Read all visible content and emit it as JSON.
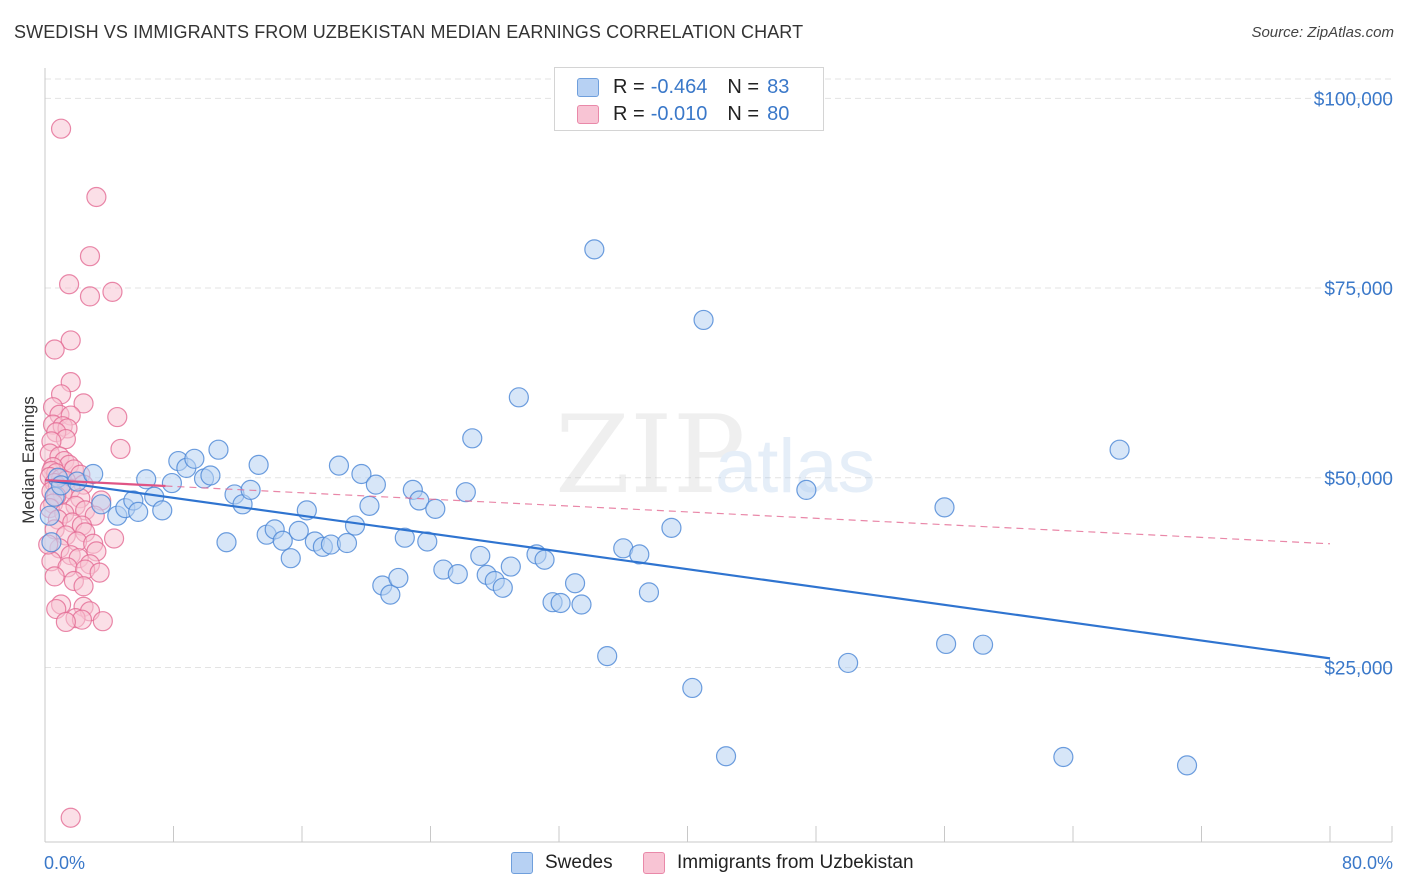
{
  "title": "SWEDISH VS IMMIGRANTS FROM UZBEKISTAN MEDIAN EARNINGS CORRELATION CHART",
  "source": "Source: ZipAtlas.com",
  "watermark": {
    "zip": "ZIP",
    "atlas": "atlas"
  },
  "legend": {
    "r_label": "R =",
    "n_label": "N =",
    "rows": [
      {
        "name": "Swedes",
        "r": "-0.464",
        "n": "83",
        "fill": "#b7d1f3",
        "stroke": "#6f9fdc"
      },
      {
        "name": "Immigrants from Uzbekistan",
        "r": "-0.010",
        "n": "80",
        "fill": "#f8c4d4",
        "stroke": "#e989a9"
      }
    ]
  },
  "chart_data": {
    "type": "scatter",
    "title": "SWEDISH VS IMMIGRANTS FROM UZBEKISTAN MEDIAN EARNINGS CORRELATION CHART",
    "xlabel": "",
    "ylabel": "Median Earnings",
    "xlim": [
      0,
      80
    ],
    "ylim": [
      2000,
      104000
    ],
    "x_unit": "%",
    "x_tick_labels": [
      "0.0%",
      "80.0%"
    ],
    "x_minor_ticks": [
      0,
      8,
      16,
      24,
      32,
      40,
      48,
      56,
      64,
      72,
      80
    ],
    "y_ticks": [
      25000,
      50000,
      75000,
      100000
    ],
    "y_tick_labels": [
      "$25,000",
      "$50,000",
      "$75,000",
      "$100,000"
    ],
    "grid": true,
    "legend_position": "top-center",
    "series": [
      {
        "name": "Swedes",
        "color": "#4a86d6",
        "fill": "#b7d1f3",
        "trend": {
          "x": [
            0,
            80
          ],
          "y": [
            49700,
            26200
          ],
          "style": "solid"
        },
        "points": [
          [
            0.3,
            45000
          ],
          [
            0.4,
            41500
          ],
          [
            0.6,
            47500
          ],
          [
            0.8,
            50000
          ],
          [
            1.0,
            49000
          ],
          [
            2.0,
            49500
          ],
          [
            3.0,
            50500
          ],
          [
            3.5,
            46500
          ],
          [
            4.5,
            45000
          ],
          [
            5.0,
            46000
          ],
          [
            5.5,
            47000
          ],
          [
            5.8,
            45500
          ],
          [
            6.3,
            49800
          ],
          [
            6.8,
            47500
          ],
          [
            7.3,
            45700
          ],
          [
            7.9,
            49300
          ],
          [
            8.3,
            52200
          ],
          [
            8.8,
            51300
          ],
          [
            9.3,
            52500
          ],
          [
            9.9,
            49900
          ],
          [
            10.3,
            50300
          ],
          [
            10.8,
            53700
          ],
          [
            11.3,
            41500
          ],
          [
            11.8,
            47800
          ],
          [
            12.3,
            46500
          ],
          [
            12.8,
            48400
          ],
          [
            13.3,
            51700
          ],
          [
            13.8,
            42500
          ],
          [
            14.3,
            43200
          ],
          [
            14.8,
            41700
          ],
          [
            15.3,
            39400
          ],
          [
            15.8,
            43000
          ],
          [
            16.3,
            45700
          ],
          [
            16.8,
            41600
          ],
          [
            17.3,
            40900
          ],
          [
            17.8,
            41200
          ],
          [
            18.3,
            51600
          ],
          [
            18.8,
            41400
          ],
          [
            19.3,
            43700
          ],
          [
            19.7,
            50500
          ],
          [
            20.2,
            46300
          ],
          [
            20.6,
            49100
          ],
          [
            21.0,
            35800
          ],
          [
            21.5,
            34600
          ],
          [
            22.0,
            36800
          ],
          [
            22.4,
            42100
          ],
          [
            22.9,
            48400
          ],
          [
            23.3,
            47000
          ],
          [
            23.8,
            41600
          ],
          [
            24.3,
            45900
          ],
          [
            24.8,
            37900
          ],
          [
            25.7,
            37300
          ],
          [
            26.2,
            48100
          ],
          [
            26.6,
            55200
          ],
          [
            27.1,
            39700
          ],
          [
            27.5,
            37200
          ],
          [
            28.0,
            36400
          ],
          [
            28.5,
            35500
          ],
          [
            29.0,
            38300
          ],
          [
            29.5,
            60600
          ],
          [
            30.6,
            39900
          ],
          [
            31.1,
            39200
          ],
          [
            31.6,
            33600
          ],
          [
            32.1,
            33500
          ],
          [
            33.0,
            36100
          ],
          [
            33.4,
            33300
          ],
          [
            34.2,
            80100
          ],
          [
            35.0,
            26500
          ],
          [
            36.0,
            40700
          ],
          [
            37.0,
            39900
          ],
          [
            37.6,
            34900
          ],
          [
            39.0,
            43400
          ],
          [
            40.3,
            22300
          ],
          [
            41.0,
            70800
          ],
          [
            42.4,
            13300
          ],
          [
            47.4,
            48400
          ],
          [
            50.0,
            25600
          ],
          [
            56.0,
            46100
          ],
          [
            56.1,
            28100
          ],
          [
            58.4,
            28000
          ],
          [
            63.4,
            13200
          ],
          [
            66.9,
            53700
          ],
          [
            71.1,
            12100
          ]
        ]
      },
      {
        "name": "Immigrants from Uzbekistan",
        "color": "#e46a93",
        "fill": "#f8c4d4",
        "trend": {
          "x": [
            0,
            80
          ],
          "y": [
            49700,
            41300
          ],
          "style": "dashed",
          "solid_until_x": 7.5
        },
        "points": [
          [
            1.0,
            96000
          ],
          [
            3.2,
            87000
          ],
          [
            2.8,
            79200
          ],
          [
            1.5,
            75500
          ],
          [
            4.2,
            74500
          ],
          [
            2.8,
            73900
          ],
          [
            1.6,
            68100
          ],
          [
            0.6,
            66900
          ],
          [
            1.6,
            62600
          ],
          [
            1.0,
            61000
          ],
          [
            2.4,
            59800
          ],
          [
            0.5,
            59300
          ],
          [
            0.9,
            58300
          ],
          [
            1.6,
            58200
          ],
          [
            4.5,
            58000
          ],
          [
            0.5,
            57000
          ],
          [
            1.1,
            56800
          ],
          [
            1.4,
            56500
          ],
          [
            0.7,
            56000
          ],
          [
            1.3,
            55100
          ],
          [
            0.4,
            54800
          ],
          [
            4.7,
            53800
          ],
          [
            0.3,
            53200
          ],
          [
            0.9,
            52800
          ],
          [
            1.2,
            52200
          ],
          [
            1.5,
            51700
          ],
          [
            0.5,
            51400
          ],
          [
            1.8,
            51100
          ],
          [
            0.4,
            50900
          ],
          [
            0.7,
            50600
          ],
          [
            2.2,
            50400
          ],
          [
            0.3,
            50100
          ],
          [
            1.0,
            49900
          ],
          [
            1.3,
            49600
          ],
          [
            0.6,
            49300
          ],
          [
            2.4,
            49100
          ],
          [
            0.8,
            48800
          ],
          [
            1.6,
            48500
          ],
          [
            0.4,
            48200
          ],
          [
            1.1,
            47900
          ],
          [
            0.7,
            47600
          ],
          [
            2.2,
            47300
          ],
          [
            3.5,
            47000
          ],
          [
            0.5,
            46600
          ],
          [
            1.9,
            46300
          ],
          [
            0.3,
            46000
          ],
          [
            2.5,
            45700
          ],
          [
            1.2,
            45300
          ],
          [
            3.1,
            45000
          ],
          [
            0.8,
            44500
          ],
          [
            1.7,
            44100
          ],
          [
            2.3,
            43700
          ],
          [
            0.6,
            43200
          ],
          [
            2.5,
            42800
          ],
          [
            1.3,
            42400
          ],
          [
            4.3,
            42000
          ],
          [
            2.0,
            41600
          ],
          [
            3.0,
            41300
          ],
          [
            0.9,
            40700
          ],
          [
            3.2,
            40300
          ],
          [
            1.6,
            39800
          ],
          [
            2.1,
            39400
          ],
          [
            0.4,
            39000
          ],
          [
            2.8,
            38600
          ],
          [
            1.4,
            38200
          ],
          [
            2.5,
            37900
          ],
          [
            3.4,
            37500
          ],
          [
            0.6,
            37000
          ],
          [
            1.8,
            36400
          ],
          [
            2.4,
            35700
          ],
          [
            1.0,
            33300
          ],
          [
            2.4,
            33000
          ],
          [
            0.7,
            32700
          ],
          [
            2.8,
            32400
          ],
          [
            1.9,
            31500
          ],
          [
            3.6,
            31100
          ],
          [
            2.3,
            31300
          ],
          [
            1.3,
            31000
          ],
          [
            1.6,
            5200
          ],
          [
            0.2,
            41200
          ]
        ]
      }
    ]
  }
}
